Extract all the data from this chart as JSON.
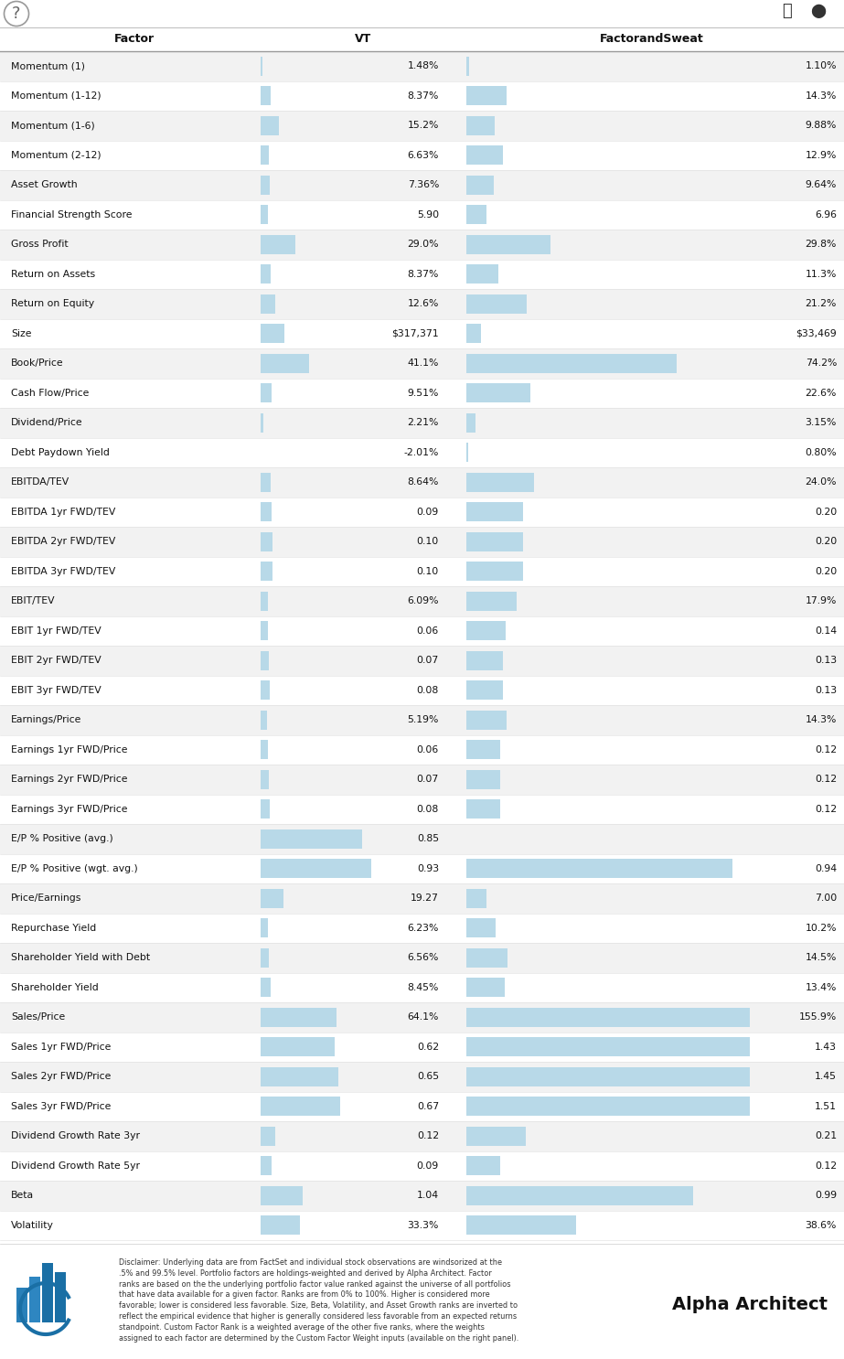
{
  "header_factor": "Factor",
  "header_vt": "VT",
  "header_fs": "FactorandSweat",
  "rows": [
    {
      "factor": "Momentum (1)",
      "vt_val": "1.48%",
      "vt_bar": 1.48,
      "fs_val": "1.10%",
      "fs_bar": 1.1
    },
    {
      "factor": "Momentum (1-12)",
      "vt_val": "8.37%",
      "vt_bar": 8.37,
      "fs_val": "14.3%",
      "fs_bar": 14.3
    },
    {
      "factor": "Momentum (1-6)",
      "vt_val": "15.2%",
      "vt_bar": 15.2,
      "fs_val": "9.88%",
      "fs_bar": 9.88
    },
    {
      "factor": "Momentum (2-12)",
      "vt_val": "6.63%",
      "vt_bar": 6.63,
      "fs_val": "12.9%",
      "fs_bar": 12.9
    },
    {
      "factor": "Asset Growth",
      "vt_val": "7.36%",
      "vt_bar": 7.36,
      "fs_val": "9.64%",
      "fs_bar": 9.64
    },
    {
      "factor": "Financial Strength Score",
      "vt_val": "5.90",
      "vt_bar": 5.9,
      "fs_val": "6.96",
      "fs_bar": 6.96
    },
    {
      "factor": "Gross Profit",
      "vt_val": "29.0%",
      "vt_bar": 29.0,
      "fs_val": "29.8%",
      "fs_bar": 29.8
    },
    {
      "factor": "Return on Assets",
      "vt_val": "8.37%",
      "vt_bar": 8.37,
      "fs_val": "11.3%",
      "fs_bar": 11.3
    },
    {
      "factor": "Return on Equity",
      "vt_val": "12.6%",
      "vt_bar": 12.6,
      "fs_val": "21.2%",
      "fs_bar": 21.2
    },
    {
      "factor": "Size",
      "vt_val": "$317,371",
      "vt_bar": 20.0,
      "fs_val": "$33,469",
      "fs_bar": 5.0
    },
    {
      "factor": "Book/Price",
      "vt_val": "41.1%",
      "vt_bar": 41.1,
      "fs_val": "74.2%",
      "fs_bar": 74.2
    },
    {
      "factor": "Cash Flow/Price",
      "vt_val": "9.51%",
      "vt_bar": 9.51,
      "fs_val": "22.6%",
      "fs_bar": 22.6
    },
    {
      "factor": "Dividend/Price",
      "vt_val": "2.21%",
      "vt_bar": 2.21,
      "fs_val": "3.15%",
      "fs_bar": 3.15
    },
    {
      "factor": "Debt Paydown Yield",
      "vt_val": "-2.01%",
      "vt_bar": 0.0,
      "fs_val": "0.80%",
      "fs_bar": 0.8
    },
    {
      "factor": "EBITDA/TEV",
      "vt_val": "8.64%",
      "vt_bar": 8.64,
      "fs_val": "24.0%",
      "fs_bar": 24.0
    },
    {
      "factor": "EBITDA 1yr FWD/TEV",
      "vt_val": "0.09",
      "vt_bar": 9.0,
      "fs_val": "0.20",
      "fs_bar": 20.0
    },
    {
      "factor": "EBITDA 2yr FWD/TEV",
      "vt_val": "0.10",
      "vt_bar": 10.0,
      "fs_val": "0.20",
      "fs_bar": 20.0
    },
    {
      "factor": "EBITDA 3yr FWD/TEV",
      "vt_val": "0.10",
      "vt_bar": 10.0,
      "fs_val": "0.20",
      "fs_bar": 20.0
    },
    {
      "factor": "EBIT/TEV",
      "vt_val": "6.09%",
      "vt_bar": 6.09,
      "fs_val": "17.9%",
      "fs_bar": 17.9
    },
    {
      "factor": "EBIT 1yr FWD/TEV",
      "vt_val": "0.06",
      "vt_bar": 6.0,
      "fs_val": "0.14",
      "fs_bar": 14.0
    },
    {
      "factor": "EBIT 2yr FWD/TEV",
      "vt_val": "0.07",
      "vt_bar": 7.0,
      "fs_val": "0.13",
      "fs_bar": 13.0
    },
    {
      "factor": "EBIT 3yr FWD/TEV",
      "vt_val": "0.08",
      "vt_bar": 8.0,
      "fs_val": "0.13",
      "fs_bar": 13.0
    },
    {
      "factor": "Earnings/Price",
      "vt_val": "5.19%",
      "vt_bar": 5.19,
      "fs_val": "14.3%",
      "fs_bar": 14.3
    },
    {
      "factor": "Earnings 1yr FWD/Price",
      "vt_val": "0.06",
      "vt_bar": 6.0,
      "fs_val": "0.12",
      "fs_bar": 12.0
    },
    {
      "factor": "Earnings 2yr FWD/Price",
      "vt_val": "0.07",
      "vt_bar": 7.0,
      "fs_val": "0.12",
      "fs_bar": 12.0
    },
    {
      "factor": "Earnings 3yr FWD/Price",
      "vt_val": "0.08",
      "vt_bar": 8.0,
      "fs_val": "0.12",
      "fs_bar": 12.0
    },
    {
      "factor": "E/P % Positive (avg.)",
      "vt_val": "0.85",
      "vt_bar": 85.0,
      "fs_val": "",
      "fs_bar": 0.0
    },
    {
      "factor": "E/P % Positive (wgt. avg.)",
      "vt_val": "0.93",
      "vt_bar": 93.0,
      "fs_val": "0.94",
      "fs_bar": 94.0
    },
    {
      "factor": "Price/Earnings",
      "vt_val": "19.27",
      "vt_bar": 19.27,
      "fs_val": "7.00",
      "fs_bar": 7.0
    },
    {
      "factor": "Repurchase Yield",
      "vt_val": "6.23%",
      "vt_bar": 6.23,
      "fs_val": "10.2%",
      "fs_bar": 10.2
    },
    {
      "factor": "Shareholder Yield with Debt",
      "vt_val": "6.56%",
      "vt_bar": 6.56,
      "fs_val": "14.5%",
      "fs_bar": 14.5
    },
    {
      "factor": "Shareholder Yield",
      "vt_val": "8.45%",
      "vt_bar": 8.45,
      "fs_val": "13.4%",
      "fs_bar": 13.4
    },
    {
      "factor": "Sales/Price",
      "vt_val": "64.1%",
      "vt_bar": 64.1,
      "fs_val": "155.9%",
      "fs_bar": 100.0
    },
    {
      "factor": "Sales 1yr FWD/Price",
      "vt_val": "0.62",
      "vt_bar": 62.0,
      "fs_val": "1.43",
      "fs_bar": 100.0
    },
    {
      "factor": "Sales 2yr FWD/Price",
      "vt_val": "0.65",
      "vt_bar": 65.0,
      "fs_val": "1.45",
      "fs_bar": 100.0
    },
    {
      "factor": "Sales 3yr FWD/Price",
      "vt_val": "0.67",
      "vt_bar": 67.0,
      "fs_val": "1.51",
      "fs_bar": 100.0
    },
    {
      "factor": "Dividend Growth Rate 3yr",
      "vt_val": "0.12",
      "vt_bar": 12.0,
      "fs_val": "0.21",
      "fs_bar": 21.0
    },
    {
      "factor": "Dividend Growth Rate 5yr",
      "vt_val": "0.09",
      "vt_bar": 9.0,
      "fs_val": "0.12",
      "fs_bar": 12.0
    },
    {
      "factor": "Beta",
      "vt_val": "1.04",
      "vt_bar": 35.0,
      "fs_val": "0.99",
      "fs_bar": 80.0
    },
    {
      "factor": "Volatility",
      "vt_val": "33.3%",
      "vt_bar": 33.3,
      "fs_val": "38.6%",
      "fs_bar": 38.6
    }
  ],
  "bar_color": "#b8d9e8",
  "bg_color_odd": "#f2f2f2",
  "bg_color_even": "#ffffff",
  "disclaimer": "Disclaimer: Underlying data are from FactSet and individual stock observations are windsorized at the\n.5% and 99.5% level. Portfolio factors are holdings-weighted and derived by Alpha Architect. Factor\nranks are based on the the underlying portfolio factor value ranked against the universe of all portfolios\nthat have data available for a given factor. Ranks are from 0% to 100%. Higher is considered more\nfavorable; lower is considered less favorable. Size, Beta, Volatility, and Asset Growth ranks are inverted to\nreflect the empirical evidence that higher is generally considered less favorable from an expected returns\nstandpoint. Custom Factor Rank is a weighted average of the other five ranks, where the weights\nassigned to each factor are determined by the Custom Factor Weight inputs (available on the right panel).",
  "brand": "Alpha Architect"
}
